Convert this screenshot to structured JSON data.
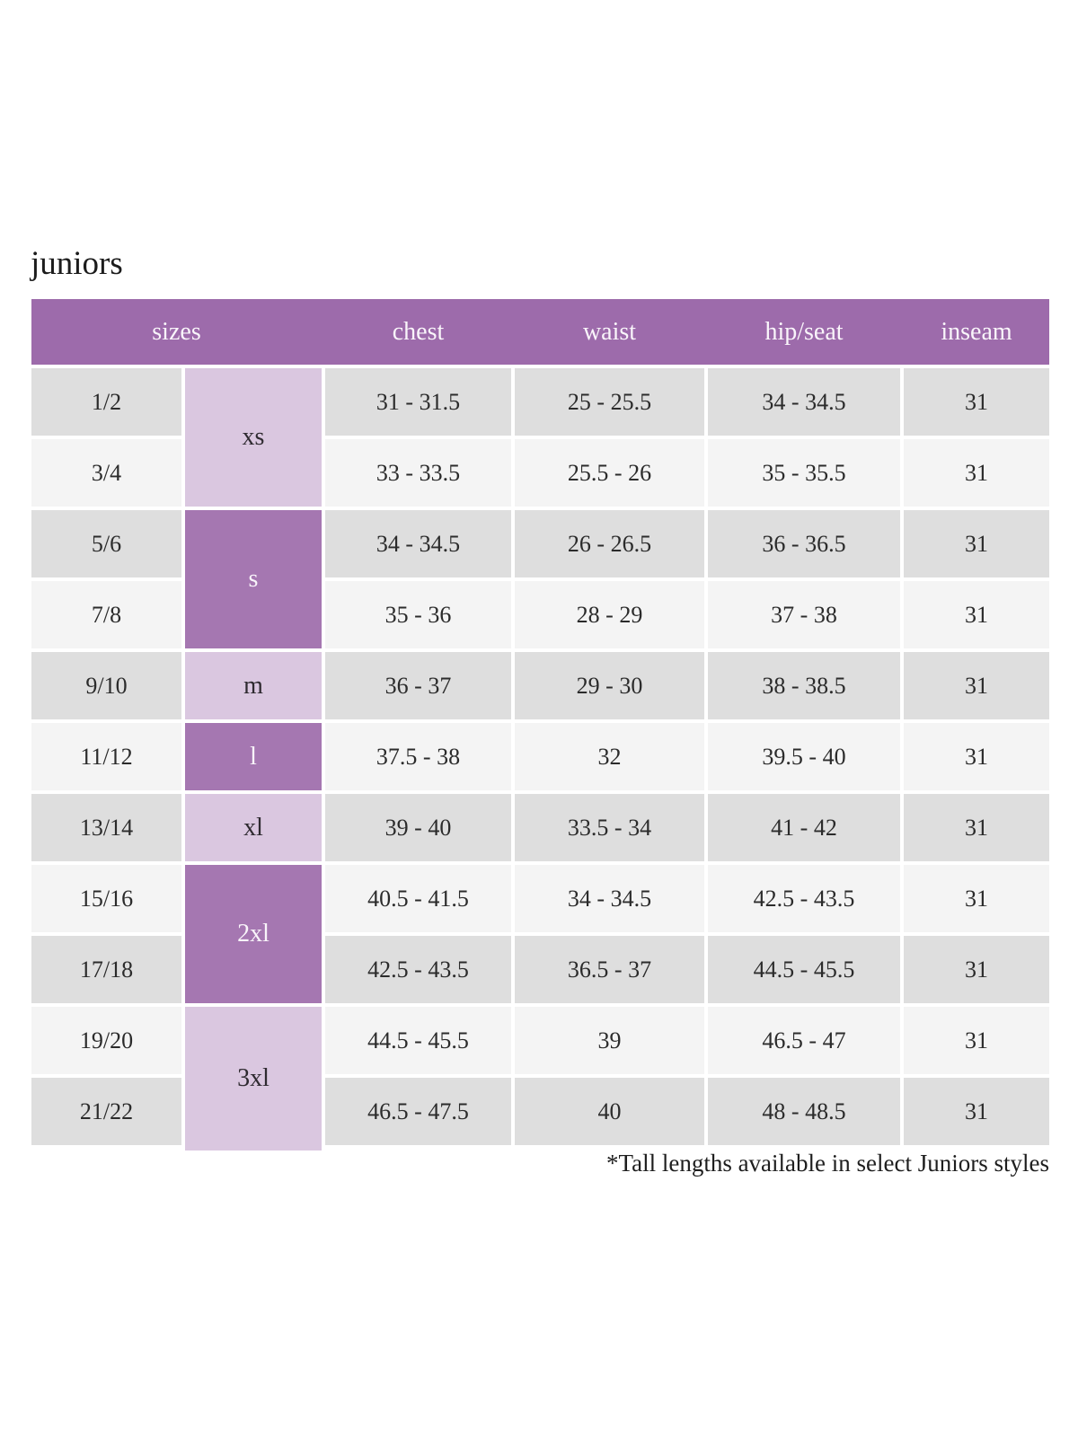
{
  "page": {
    "title": "juniors",
    "footnote": "*Tall lengths available in select Juniors styles"
  },
  "table": {
    "headers": [
      "sizes",
      "chest",
      "waist",
      "hip/seat",
      "inseam"
    ],
    "size_groups": [
      {
        "label": "xs",
        "rows": 2,
        "shade": "light"
      },
      {
        "label": "s",
        "rows": 2,
        "shade": "dark"
      },
      {
        "label": "m",
        "rows": 1,
        "shade": "light"
      },
      {
        "label": "l",
        "rows": 1,
        "shade": "dark"
      },
      {
        "label": "xl",
        "rows": 1,
        "shade": "light"
      },
      {
        "label": "2xl",
        "rows": 2,
        "shade": "dark"
      },
      {
        "label": "3xl",
        "rows": 2,
        "shade": "light"
      }
    ],
    "rows": [
      {
        "size": "1/2",
        "chest": "31 - 31.5",
        "waist": "25 - 25.5",
        "hip_seat": "34 - 34.5",
        "inseam": "31"
      },
      {
        "size": "3/4",
        "chest": "33 - 33.5",
        "waist": "25.5 - 26",
        "hip_seat": "35 - 35.5",
        "inseam": "31"
      },
      {
        "size": "5/6",
        "chest": "34 - 34.5",
        "waist": "26 - 26.5",
        "hip_seat": "36 - 36.5",
        "inseam": "31"
      },
      {
        "size": "7/8",
        "chest": "35 - 36",
        "waist": "28 - 29",
        "hip_seat": "37 - 38",
        "inseam": "31"
      },
      {
        "size": "9/10",
        "chest": "36 - 37",
        "waist": "29 - 30",
        "hip_seat": "38 - 38.5",
        "inseam": "31"
      },
      {
        "size": "11/12",
        "chest": "37.5 - 38",
        "waist": "32",
        "hip_seat": "39.5 - 40",
        "inseam": "31"
      },
      {
        "size": "13/14",
        "chest": "39 - 40",
        "waist": "33.5 - 34",
        "hip_seat": "41 - 42",
        "inseam": "31"
      },
      {
        "size": "15/16",
        "chest": "40.5 - 41.5",
        "waist": "34 - 34.5",
        "hip_seat": "42.5 - 43.5",
        "inseam": "31"
      },
      {
        "size": "17/18",
        "chest": "42.5 - 43.5",
        "waist": "36.5 - 37",
        "hip_seat": "44.5 - 45.5",
        "inseam": "31"
      },
      {
        "size": "19/20",
        "chest": "44.5 - 45.5",
        "waist": "39",
        "hip_seat": "46.5 - 47",
        "inseam": "31"
      },
      {
        "size": "21/22",
        "chest": "46.5 - 47.5",
        "waist": "40",
        "hip_seat": "48 - 48.5",
        "inseam": "31"
      }
    ],
    "colors": {
      "header_bg": "#9d6bab",
      "header_text": "#f9f5fa",
      "group_dark_bg": "#a577b1",
      "group_dark_text": "#f9f5fa",
      "group_light_bg": "#dac7e0",
      "group_light_text": "#2e2a30",
      "row_odd_bg": "#dedede",
      "row_even_bg": "#f4f4f4",
      "text": "#2b2b2b"
    }
  }
}
